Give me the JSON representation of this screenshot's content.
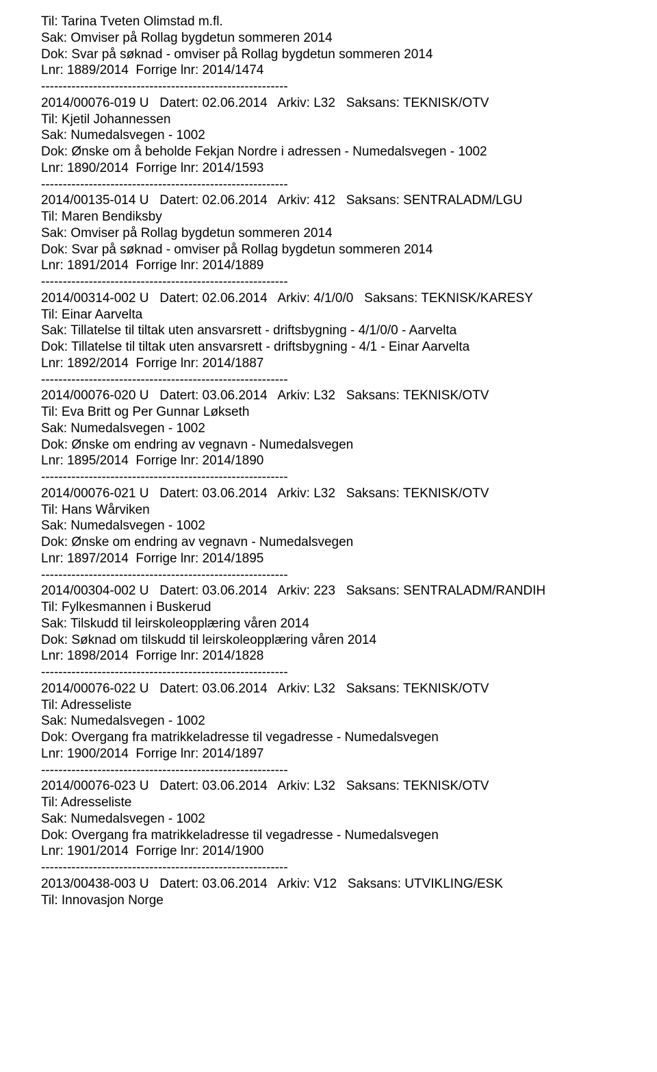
{
  "separator": "---------------------------------------------------------",
  "entries": [
    {
      "lines": [
        "Til: Tarina Tveten Olimstad m.fl.",
        "Sak: Omviser på Rollag bygdetun sommeren 2014",
        "Dok: Svar på søknad - omviser på Rollag bygdetun sommeren 2014",
        "Lnr: 1889/2014  Forrige lnr: 2014/1474"
      ]
    },
    {
      "lines": [
        "2014/00076-019 U   Datert: 02.06.2014   Arkiv: L32   Saksans: TEKNISK/OTV",
        "Til: Kjetil Johannessen",
        "Sak: Numedalsvegen - 1002",
        "Dok: Ønske om å beholde Fekjan Nordre i adressen - Numedalsvegen - 1002",
        "Lnr: 1890/2014  Forrige lnr: 2014/1593"
      ]
    },
    {
      "lines": [
        "2014/00135-014 U   Datert: 02.06.2014   Arkiv: 412   Saksans: SENTRALADM/LGU",
        "Til: Maren Bendiksby",
        "Sak: Omviser på Rollag bygdetun sommeren 2014",
        "Dok: Svar på søknad - omviser på Rollag bygdetun sommeren 2014",
        "Lnr: 1891/2014  Forrige lnr: 2014/1889"
      ]
    },
    {
      "lines": [
        "2014/00314-002 U   Datert: 02.06.2014   Arkiv: 4/1/0/0   Saksans: TEKNISK/KARESY",
        "Til: Einar Aarvelta",
        "Sak: Tillatelse til tiltak uten ansvarsrett - driftsbygning - 4/1/0/0 - Aarvelta",
        "Dok: Tillatelse til tiltak uten ansvarsrett - driftsbygning - 4/1 - Einar Aarvelta",
        "Lnr: 1892/2014  Forrige lnr: 2014/1887"
      ]
    },
    {
      "lines": [
        "2014/00076-020 U   Datert: 03.06.2014   Arkiv: L32   Saksans: TEKNISK/OTV",
        "Til: Eva Britt og Per Gunnar Løkseth",
        "Sak: Numedalsvegen - 1002",
        "Dok: Ønske om endring av vegnavn - Numedalsvegen",
        "Lnr: 1895/2014  Forrige lnr: 2014/1890"
      ]
    },
    {
      "lines": [
        "2014/00076-021 U   Datert: 03.06.2014   Arkiv: L32   Saksans: TEKNISK/OTV",
        "Til: Hans Wårviken",
        "Sak: Numedalsvegen - 1002",
        "Dok: Ønske om endring av vegnavn - Numedalsvegen",
        "Lnr: 1897/2014  Forrige lnr: 2014/1895"
      ]
    },
    {
      "lines": [
        "2014/00304-002 U   Datert: 03.06.2014   Arkiv: 223   Saksans: SENTRALADM/RANDIH",
        "Til: Fylkesmannen i Buskerud",
        "Sak: Tilskudd til leirskoleopplæring våren 2014",
        "Dok: Søknad om tilskudd til leirskoleopplæring våren 2014",
        "Lnr: 1898/2014  Forrige lnr: 2014/1828"
      ]
    },
    {
      "lines": [
        "2014/00076-022 U   Datert: 03.06.2014   Arkiv: L32   Saksans: TEKNISK/OTV",
        "Til: Adresseliste",
        "Sak: Numedalsvegen - 1002",
        "Dok: Overgang fra matrikkeladresse til vegadresse - Numedalsvegen",
        "Lnr: 1900/2014  Forrige lnr: 2014/1897"
      ]
    },
    {
      "lines": [
        "2014/00076-023 U   Datert: 03.06.2014   Arkiv: L32   Saksans: TEKNISK/OTV",
        "Til: Adresseliste",
        "Sak: Numedalsvegen - 1002",
        "Dok: Overgang fra matrikkeladresse til vegadresse - Numedalsvegen",
        "Lnr: 1901/2014  Forrige lnr: 2014/1900"
      ]
    },
    {
      "lines": [
        "2013/00438-003 U   Datert: 03.06.2014   Arkiv: V12   Saksans: UTVIKLING/ESK",
        "Til: Innovasjon Norge"
      ],
      "noTrailingSep": true
    }
  ]
}
